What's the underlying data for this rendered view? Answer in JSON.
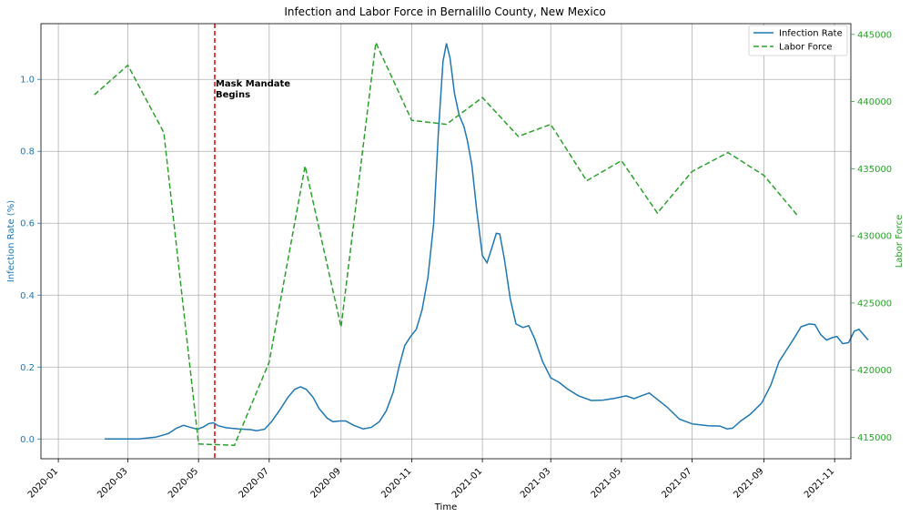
{
  "chart_data": {
    "type": "line",
    "title": "Infection and Labor Force in Bernalillo County, New Mexico",
    "xlabel": "Time",
    "ylabel_left": "Infection Rate (%)",
    "ylabel_right": "Labor Force",
    "xlim": [
      "2019-12-17",
      "2021-11-15"
    ],
    "ylim_left": [
      -0.055,
      1.155
    ],
    "ylim_right": [
      413400,
      445800
    ],
    "x_ticks": [
      "2020-01",
      "2020-03",
      "2020-05",
      "2020-07",
      "2020-09",
      "2020-11",
      "2021-01",
      "2021-03",
      "2021-05",
      "2021-07",
      "2021-09",
      "2021-11"
    ],
    "y_ticks_left": [
      "0.0",
      "0.2",
      "0.4",
      "0.6",
      "0.8",
      "1.0"
    ],
    "y_ticks_right": [
      "415000",
      "420000",
      "425000",
      "430000",
      "435000",
      "440000",
      "445000"
    ],
    "grid": true,
    "legend_position": "top-right",
    "colors": {
      "infection": "#1f77b4",
      "labor": "#2ca02c",
      "mandate": "#e00000"
    },
    "annotation": {
      "line1": "Mask Mandate",
      "line2": "Begins",
      "date": "2020-05-15"
    },
    "series": [
      {
        "name": "Infection Rate",
        "axis": "left",
        "style": "solid",
        "points": [
          [
            "2020-02-10",
            0.0
          ],
          [
            "2020-03-10",
            0.0
          ],
          [
            "2020-03-25",
            0.005
          ],
          [
            "2020-04-05",
            0.015
          ],
          [
            "2020-04-12",
            0.03
          ],
          [
            "2020-04-18",
            0.038
          ],
          [
            "2020-04-23",
            0.033
          ],
          [
            "2020-04-30",
            0.027
          ],
          [
            "2020-05-05",
            0.033
          ],
          [
            "2020-05-10",
            0.043
          ],
          [
            "2020-05-14",
            0.045
          ],
          [
            "2020-05-18",
            0.037
          ],
          [
            "2020-05-25",
            0.031
          ],
          [
            "2020-06-05",
            0.028
          ],
          [
            "2020-06-15",
            0.026
          ],
          [
            "2020-06-20",
            0.023
          ],
          [
            "2020-06-27",
            0.027
          ],
          [
            "2020-07-03",
            0.048
          ],
          [
            "2020-07-10",
            0.08
          ],
          [
            "2020-07-17",
            0.115
          ],
          [
            "2020-07-23",
            0.138
          ],
          [
            "2020-07-28",
            0.145
          ],
          [
            "2020-08-02",
            0.138
          ],
          [
            "2020-08-08",
            0.115
          ],
          [
            "2020-08-13",
            0.085
          ],
          [
            "2020-08-20",
            0.058
          ],
          [
            "2020-08-25",
            0.048
          ],
          [
            "2020-08-31",
            0.05
          ],
          [
            "2020-09-05",
            0.05
          ],
          [
            "2020-09-12",
            0.038
          ],
          [
            "2020-09-20",
            0.028
          ],
          [
            "2020-09-27",
            0.032
          ],
          [
            "2020-10-04",
            0.048
          ],
          [
            "2020-10-10",
            0.078
          ],
          [
            "2020-10-16",
            0.13
          ],
          [
            "2020-10-21",
            0.2
          ],
          [
            "2020-10-26",
            0.26
          ],
          [
            "2020-10-31",
            0.285
          ],
          [
            "2020-11-05",
            0.305
          ],
          [
            "2020-11-10",
            0.36
          ],
          [
            "2020-11-15",
            0.45
          ],
          [
            "2020-11-20",
            0.6
          ],
          [
            "2020-11-24",
            0.85
          ],
          [
            "2020-11-28",
            1.05
          ],
          [
            "2020-12-01",
            1.1
          ],
          [
            "2020-12-04",
            1.06
          ],
          [
            "2020-12-08",
            0.96
          ],
          [
            "2020-12-12",
            0.9
          ],
          [
            "2020-12-16",
            0.87
          ],
          [
            "2020-12-19",
            0.83
          ],
          [
            "2020-12-23",
            0.76
          ],
          [
            "2020-12-27",
            0.64
          ],
          [
            "2021-01-01",
            0.51
          ],
          [
            "2021-01-05",
            0.49
          ],
          [
            "2021-01-09",
            0.53
          ],
          [
            "2021-01-13",
            0.572
          ],
          [
            "2021-01-16",
            0.57
          ],
          [
            "2021-01-20",
            0.5
          ],
          [
            "2021-01-25",
            0.39
          ],
          [
            "2021-01-30",
            0.32
          ],
          [
            "2021-02-05",
            0.31
          ],
          [
            "2021-02-10",
            0.315
          ],
          [
            "2021-02-15",
            0.28
          ],
          [
            "2021-02-22",
            0.215
          ],
          [
            "2021-03-01",
            0.17
          ],
          [
            "2021-03-08",
            0.158
          ],
          [
            "2021-03-15",
            0.14
          ],
          [
            "2021-03-25",
            0.12
          ],
          [
            "2021-04-05",
            0.107
          ],
          [
            "2021-04-15",
            0.108
          ],
          [
            "2021-04-25",
            0.113
          ],
          [
            "2021-05-05",
            0.12
          ],
          [
            "2021-05-12",
            0.112
          ],
          [
            "2021-05-18",
            0.12
          ],
          [
            "2021-05-25",
            0.128
          ],
          [
            "2021-06-01",
            0.11
          ],
          [
            "2021-06-10",
            0.087
          ],
          [
            "2021-06-20",
            0.055
          ],
          [
            "2021-07-01",
            0.042
          ],
          [
            "2021-07-15",
            0.037
          ],
          [
            "2021-07-25",
            0.036
          ],
          [
            "2021-07-31",
            0.028
          ],
          [
            "2021-08-05",
            0.03
          ],
          [
            "2021-08-12",
            0.05
          ],
          [
            "2021-08-20",
            0.068
          ],
          [
            "2021-08-30",
            0.1
          ],
          [
            "2021-09-07",
            0.15
          ],
          [
            "2021-09-14",
            0.215
          ],
          [
            "2021-09-20",
            0.245
          ],
          [
            "2021-09-27",
            0.28
          ],
          [
            "2021-10-03",
            0.312
          ],
          [
            "2021-10-10",
            0.32
          ],
          [
            "2021-10-15",
            0.318
          ],
          [
            "2021-10-20",
            0.29
          ],
          [
            "2021-10-25",
            0.275
          ],
          [
            "2021-10-30",
            0.282
          ],
          [
            "2021-11-03",
            0.285
          ],
          [
            "2021-11-08",
            0.265
          ],
          [
            "2021-11-13",
            0.268
          ],
          [
            "2021-11-18",
            0.3
          ],
          [
            "2021-11-22",
            0.305
          ],
          [
            "2021-11-26",
            0.29
          ],
          [
            "2021-11-30",
            0.275
          ]
        ]
      },
      {
        "name": "Labor Force",
        "axis": "right",
        "style": "dashed",
        "points": [
          [
            "2020-02-01",
            440500
          ],
          [
            "2020-03-01",
            442700
          ],
          [
            "2020-04-01",
            437700
          ],
          [
            "2020-05-01",
            414500
          ],
          [
            "2020-06-01",
            414400
          ],
          [
            "2020-07-01",
            420600
          ],
          [
            "2020-08-01",
            435200
          ],
          [
            "2020-09-01",
            423200
          ],
          [
            "2020-10-01",
            444400
          ],
          [
            "2020-11-01",
            438600
          ],
          [
            "2020-12-01",
            438300
          ],
          [
            "2021-01-01",
            440300
          ],
          [
            "2021-02-01",
            437400
          ],
          [
            "2021-03-01",
            438300
          ],
          [
            "2021-04-01",
            434100
          ],
          [
            "2021-05-01",
            435600
          ],
          [
            "2021-06-01",
            431700
          ],
          [
            "2021-07-01",
            434800
          ],
          [
            "2021-08-01",
            436200
          ],
          [
            "2021-09-01",
            434500
          ],
          [
            "2021-10-01",
            431400
          ]
        ]
      }
    ]
  }
}
